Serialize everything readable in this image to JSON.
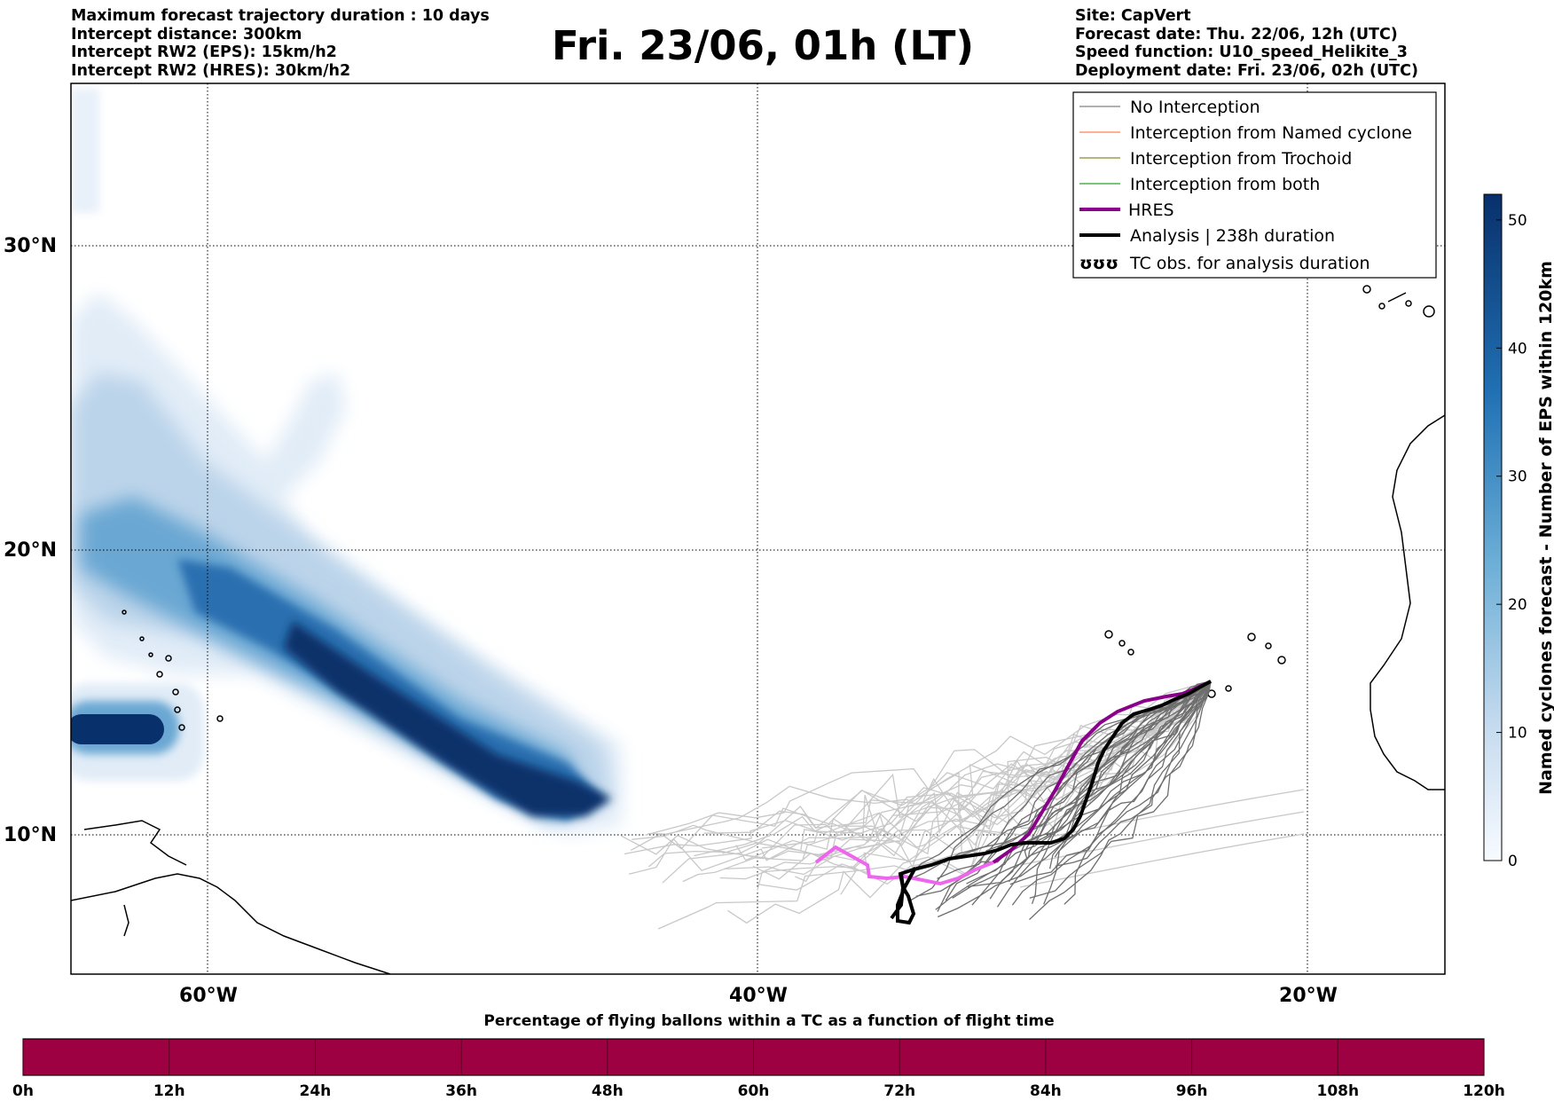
{
  "header": {
    "left_lines": [
      "Maximum forecast trajectory duration : 10 days",
      "Intercept distance: 300km",
      "Intercept RW2 (EPS):  15km/h2",
      "Intercept RW2 (HRES): 30km/h2"
    ],
    "title": "Fri. 23/06, 01h (LT)",
    "right_lines": [
      "Site: CapVert",
      "Forecast date: Thu. 22/06, 12h (UTC)",
      "Speed function: U10_speed_Helikite_3",
      "Deployment date: Fri. 23/06, 02h (UTC)"
    ]
  },
  "map": {
    "lat_labels": [
      "30°N",
      "20°N",
      "10°N"
    ],
    "lon_labels": [
      "60°W",
      "40°W",
      "20°W"
    ],
    "legend": [
      {
        "label": "No Interception",
        "color": "#808080",
        "style": "thin"
      },
      {
        "label": "Interception from Named cyclone",
        "color": "#ff7f50",
        "style": "thin"
      },
      {
        "label": "Interception from Trochoid",
        "color": "#8b8b2a",
        "style": "thin"
      },
      {
        "label": "Interception from both",
        "color": "#2ca02c",
        "style": "thin"
      },
      {
        "label": "HRES",
        "color": "#8b008b",
        "style": "thick"
      },
      {
        "label": "Analysis | 238h duration",
        "color": "#000000",
        "style": "thick"
      },
      {
        "label": "TC obs. for analysis duration",
        "color": "#000000",
        "style": "symbol"
      }
    ],
    "legend_symbol": "ʊʊʊ"
  },
  "colorbar": {
    "label": "Named cyclones forecast - Number of EPS within 120km",
    "ticks": [
      "0",
      "10",
      "20",
      "30",
      "40",
      "50"
    ],
    "min": 0,
    "max": 52
  },
  "timebar": {
    "title": "Percentage of flying ballons within a TC as a function of flight time",
    "ticks": [
      "0h",
      "12h",
      "24h",
      "36h",
      "48h",
      "60h",
      "72h",
      "84h",
      "96h",
      "108h",
      "120h"
    ],
    "fill_color": "#9e0142"
  },
  "colors": {
    "density_light": "#e1ecf7",
    "density_mid": "#6aa7d3",
    "density_dark": "#08306b",
    "hres_pink": "#ee66ee",
    "hres_purple": "#8b008b"
  }
}
